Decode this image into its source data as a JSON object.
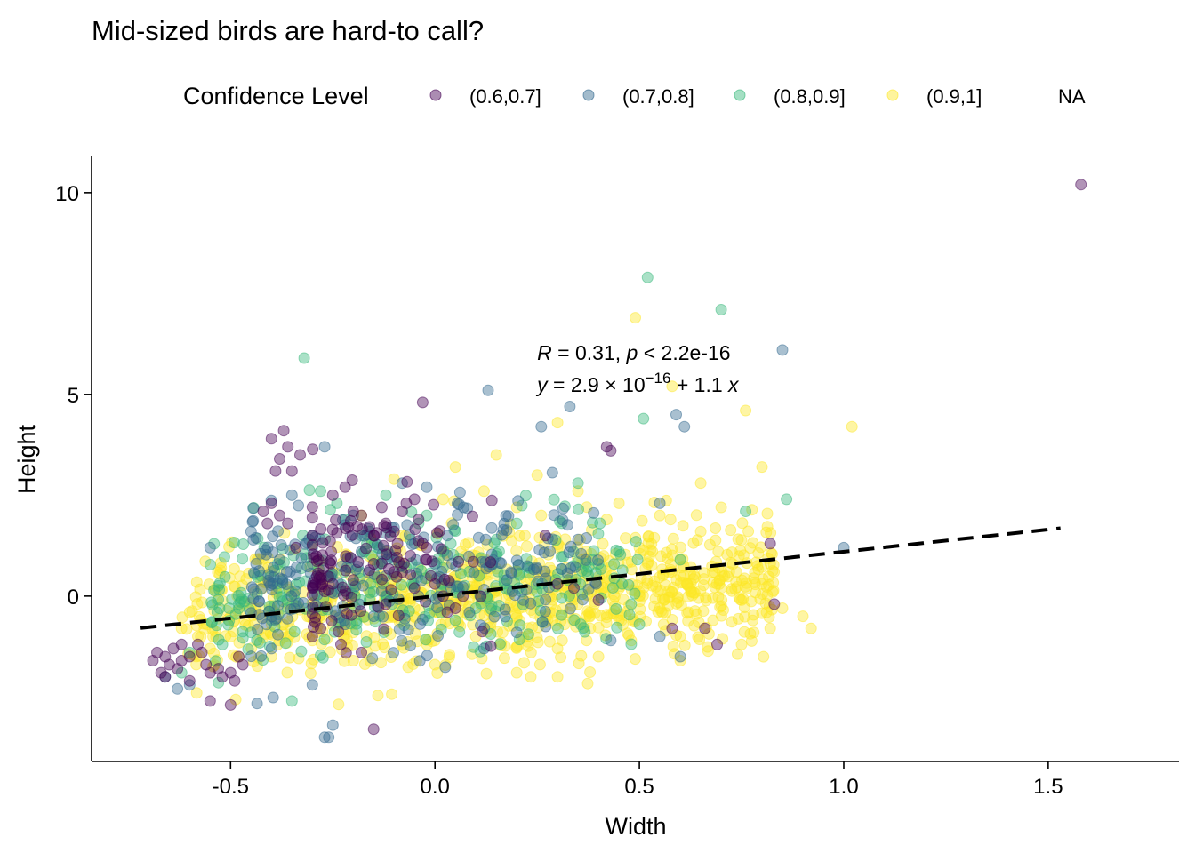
{
  "chart_data": {
    "type": "scatter",
    "title": "Mid-sized birds are hard-to call?",
    "xlabel": "Width",
    "ylabel": "Height",
    "xlim": [
      -0.84,
      1.82
    ],
    "ylim": [
      -4.1,
      10.9
    ],
    "x_ticks": [
      -0.5,
      0.0,
      0.5,
      1.0,
      1.5
    ],
    "x_tick_labels": [
      "-0.5",
      "0.0",
      "0.5",
      "1.0",
      "1.5"
    ],
    "y_ticks": [
      0,
      5,
      10
    ],
    "y_tick_labels": [
      "0",
      "5",
      "10"
    ],
    "legend": {
      "title": "Confidence Level",
      "position": "top",
      "entries": [
        {
          "label": "(0.6,0.7]",
          "color": "#440154"
        },
        {
          "label": "(0.7,0.8]",
          "color": "#31688E"
        },
        {
          "label": "(0.8,0.9]",
          "color": "#35B779"
        },
        {
          "label": "(0.9,1]",
          "color": "#FDE725"
        },
        {
          "label": "NA",
          "color": "#7F7F7F"
        }
      ]
    },
    "regression": {
      "intercept": 0.0,
      "slope": 1.1,
      "x_range": [
        -0.72,
        1.53
      ],
      "style": "dashed"
    },
    "annotations": {
      "line1": {
        "r_label": "R",
        "r_text": " = 0.31, ",
        "p_label": "p",
        "p_text": " < 2.2e-16"
      },
      "line2": {
        "y_label": "y",
        "eq_text": " = 2.9 × 10",
        "exponent": "−16",
        "tail_text": " + 1.1 ",
        "x_label": "x"
      },
      "anchor": [
        0.25,
        5.2
      ]
    },
    "series": [
      {
        "name": "(0.6,0.7]",
        "color": "#440154",
        "points": [
          [
            -0.69,
            -1.6
          ],
          [
            -0.68,
            -1.4
          ],
          [
            -0.67,
            -1.9
          ],
          [
            -0.66,
            -1.5
          ],
          [
            -0.65,
            -1.7
          ],
          [
            -0.64,
            -1.3
          ],
          [
            -0.63,
            -1.8
          ],
          [
            -0.62,
            -1.6
          ],
          [
            -0.66,
            -2.0
          ],
          [
            -0.6,
            -1.5
          ],
          [
            -0.58,
            -1.2
          ],
          [
            -0.56,
            -1.7
          ],
          [
            -0.55,
            -1.9
          ],
          [
            -0.53,
            -1.8
          ],
          [
            -0.52,
            -2.0
          ],
          [
            -0.5,
            -1.9
          ],
          [
            -0.49,
            -2.1
          ],
          [
            -0.47,
            -1.7
          ],
          [
            -0.5,
            -2.7
          ],
          [
            -0.55,
            -2.6
          ],
          [
            -0.6,
            -2.1
          ],
          [
            -0.57,
            -1.4
          ],
          [
            -0.62,
            -1.2
          ],
          [
            -0.48,
            -1.5
          ],
          [
            -0.4,
            3.9
          ],
          [
            -0.37,
            4.1
          ],
          [
            -0.36,
            3.7
          ],
          [
            -0.39,
            3.1
          ],
          [
            -0.38,
            3.4
          ],
          [
            -0.35,
            3.1
          ],
          [
            -0.33,
            3.5
          ],
          [
            -0.42,
            2.1
          ],
          [
            -0.4,
            2.3
          ],
          [
            -0.41,
            1.8
          ],
          [
            -0.38,
            2.0
          ],
          [
            -0.36,
            1.8
          ],
          [
            -0.34,
            1.2
          ],
          [
            -0.3,
            1.5
          ],
          [
            -0.25,
            2.5
          ],
          [
            -0.22,
            2.7
          ],
          [
            -0.2,
            2.1
          ],
          [
            -0.18,
            2.0
          ],
          [
            -0.15,
            1.5
          ],
          [
            -0.13,
            2.2
          ],
          [
            -0.12,
            1.8
          ],
          [
            -0.1,
            1.6
          ],
          [
            -0.08,
            2.1
          ],
          [
            -0.07,
            2.3
          ],
          [
            -0.05,
            2.4
          ],
          [
            -0.04,
            1.9
          ],
          [
            -0.03,
            1.3
          ],
          [
            -0.06,
            1.0
          ],
          [
            -0.02,
            0.9
          ],
          [
            -0.01,
            0.5
          ],
          [
            0.0,
            0.3
          ],
          [
            0.02,
            0.0
          ],
          [
            0.03,
            -0.4
          ],
          [
            -0.05,
            0.2
          ],
          [
            -0.1,
            0.6
          ],
          [
            -0.12,
            -0.2
          ],
          [
            -0.15,
            0.8
          ],
          [
            -0.2,
            0.4
          ],
          [
            -0.25,
            0.3
          ],
          [
            -0.28,
            -0.8
          ],
          [
            -0.23,
            -1.2
          ],
          [
            -0.18,
            -1.4
          ],
          [
            -0.15,
            -3.3
          ],
          [
            -0.03,
            4.8
          ],
          [
            0.27,
            1.5
          ],
          [
            0.3,
            0.3
          ],
          [
            0.34,
            0.2
          ],
          [
            0.4,
            -0.1
          ],
          [
            0.42,
            3.7
          ],
          [
            0.43,
            3.6
          ],
          [
            0.58,
            -0.8
          ],
          [
            0.66,
            -0.8
          ],
          [
            0.69,
            -1.2
          ],
          [
            0.82,
            1.3
          ],
          [
            0.83,
            -0.2
          ],
          [
            1.58,
            10.2
          ],
          [
            -0.02,
            1.2
          ],
          [
            -0.08,
            0.6
          ],
          [
            0.05,
            -0.3
          ],
          [
            -0.3,
            -1.0
          ]
        ]
      },
      {
        "name": "(0.7,0.8]",
        "color": "#31688E",
        "points": [
          [
            -0.27,
            -3.5
          ],
          [
            -0.25,
            -3.2
          ],
          [
            -0.26,
            -3.5
          ],
          [
            -0.3,
            -2.2
          ],
          [
            -0.6,
            -2.2
          ],
          [
            -0.55,
            1.2
          ],
          [
            -0.27,
            3.7
          ],
          [
            0.13,
            5.1
          ],
          [
            0.26,
            4.2
          ],
          [
            0.33,
            4.7
          ],
          [
            0.59,
            4.5
          ],
          [
            0.61,
            4.2
          ],
          [
            0.85,
            6.1
          ],
          [
            0.55,
            2.3
          ],
          [
            1.0,
            1.2
          ],
          [
            -0.2,
            2.0
          ],
          [
            -0.1,
            1.7
          ],
          [
            -0.05,
            1.3
          ],
          [
            0.0,
            0.8
          ],
          [
            0.03,
            1.5
          ],
          [
            -0.15,
            -0.5
          ],
          [
            -0.22,
            -0.7
          ],
          [
            -0.4,
            -1.3
          ],
          [
            -0.63,
            -2.3
          ],
          [
            -0.66,
            -2.0
          ],
          [
            0.55,
            -1.0
          ],
          [
            0.6,
            -1.5
          ],
          [
            -0.3,
            1.2
          ],
          [
            -0.12,
            0.5
          ],
          [
            -0.02,
            2.7
          ],
          [
            0.35,
            1.4
          ],
          [
            0.43,
            -1.1
          ],
          [
            0.12,
            -1.3
          ],
          [
            0.2,
            -0.9
          ],
          [
            -0.04,
            0.0
          ],
          [
            -0.35,
            2.5
          ],
          [
            -0.18,
            1.1
          ],
          [
            -0.08,
            2.8
          ],
          [
            0.07,
            2.2
          ]
        ]
      },
      {
        "name": "(0.8,0.9]",
        "color": "#35B779",
        "points": [
          [
            -0.32,
            5.9
          ],
          [
            0.52,
            7.9
          ],
          [
            0.7,
            7.1
          ],
          [
            0.51,
            4.4
          ],
          [
            0.86,
            2.4
          ],
          [
            0.76,
            2.1
          ],
          [
            -0.35,
            -2.6
          ],
          [
            -0.28,
            2.6
          ],
          [
            -0.24,
            2.3
          ],
          [
            -0.22,
            1.9
          ],
          [
            -0.18,
            1.5
          ],
          [
            -0.14,
            1.2
          ],
          [
            -0.1,
            0.9
          ],
          [
            -0.07,
            0.7
          ],
          [
            -0.04,
            1.8
          ],
          [
            0.02,
            1.1
          ],
          [
            -0.3,
            0.8
          ],
          [
            -0.26,
            0.5
          ],
          [
            -0.36,
            -0.3
          ],
          [
            -0.4,
            -0.6
          ],
          [
            -0.45,
            -0.9
          ],
          [
            -0.52,
            -1.2
          ],
          [
            -0.6,
            -1.4
          ],
          [
            -0.62,
            -1.9
          ],
          [
            0.2,
            1.8
          ],
          [
            0.15,
            1.4
          ],
          [
            0.4,
            0.8
          ],
          [
            0.45,
            1.1
          ],
          [
            -0.12,
            2.5
          ],
          [
            -0.02,
            2.0
          ],
          [
            -0.2,
            0.3
          ],
          [
            0.05,
            -0.6
          ],
          [
            0.1,
            -0.3
          ],
          [
            0.35,
            2.8
          ],
          [
            -0.48,
            -0.3
          ],
          [
            0.6,
            0.9
          ],
          [
            0.5,
            -0.7
          ],
          [
            -0.16,
            1.6
          ],
          [
            -0.06,
            1.4
          ]
        ]
      },
      {
        "name": "(0.9,1]",
        "color": "#FDE725",
        "points": [
          [
            0.49,
            6.9
          ],
          [
            0.58,
            5.2
          ],
          [
            0.76,
            4.6
          ],
          [
            1.02,
            4.2
          ],
          [
            0.3,
            4.3
          ],
          [
            0.8,
            3.2
          ],
          [
            0.65,
            2.8
          ],
          [
            0.7,
            2.2
          ],
          [
            0.9,
            -0.5
          ],
          [
            0.85,
            -0.3
          ],
          [
            0.92,
            -0.8
          ],
          [
            0.75,
            -1.2
          ],
          [
            0.6,
            -1.6
          ],
          [
            0.3,
            -2.0
          ],
          [
            0.2,
            -1.9
          ],
          [
            0.0,
            -1.7
          ],
          [
            -0.2,
            -1.6
          ],
          [
            -0.4,
            -1.5
          ],
          [
            -0.5,
            -1.0
          ],
          [
            -0.6,
            -0.4
          ],
          [
            -0.62,
            -0.8
          ],
          [
            -0.3,
            1.3
          ],
          [
            -0.1,
            2.9
          ],
          [
            0.05,
            3.2
          ],
          [
            0.15,
            3.5
          ],
          [
            0.25,
            3.0
          ],
          [
            0.35,
            2.6
          ],
          [
            0.45,
            2.3
          ],
          [
            0.55,
            2.0
          ],
          [
            0.65,
            1.6
          ],
          [
            0.05,
            0.5
          ],
          [
            0.1,
            1.0
          ],
          [
            0.15,
            0.2
          ],
          [
            0.2,
            -0.5
          ],
          [
            0.25,
            0.6
          ],
          [
            0.3,
            1.2
          ],
          [
            0.35,
            -0.2
          ],
          [
            0.4,
            0.4
          ],
          [
            0.45,
            -0.6
          ],
          [
            0.5,
            0.1
          ],
          [
            0.55,
            -0.3
          ],
          [
            0.6,
            0.5
          ],
          [
            0.7,
            0.2
          ],
          [
            0.75,
            -0.1
          ],
          [
            0.8,
            0.3
          ],
          [
            -0.1,
            -0.5
          ],
          [
            -0.2,
            -0.9
          ],
          [
            -0.3,
            -1.1
          ],
          [
            -0.4,
            -0.7
          ],
          [
            -0.5,
            -0.5
          ],
          [
            -0.55,
            -1.3
          ],
          [
            0.1,
            -1.0
          ],
          [
            0.2,
            2.2
          ],
          [
            0.3,
            -1.3
          ],
          [
            0.4,
            -1.5
          ],
          [
            0.5,
            1.2
          ],
          [
            0.6,
            -1.0
          ],
          [
            0.0,
            -1.1
          ],
          [
            -0.15,
            0.9
          ],
          [
            -0.25,
            0.6
          ],
          [
            -0.35,
            0.1
          ],
          [
            -0.45,
            -0.3
          ],
          [
            0.12,
            2.6
          ],
          [
            0.22,
            1.5
          ],
          [
            0.32,
            0.7
          ],
          [
            0.42,
            1.9
          ],
          [
            0.52,
            0.8
          ],
          [
            0.62,
            -0.4
          ],
          [
            0.72,
            0.6
          ],
          [
            0.82,
            -0.8
          ],
          [
            -0.05,
            -0.3
          ],
          [
            0.08,
            0.2
          ],
          [
            0.18,
            -0.3
          ],
          [
            0.28,
            0.0
          ],
          [
            0.38,
            -0.8
          ],
          [
            0.48,
            -1.1
          ],
          [
            0.58,
            0.1
          ],
          [
            0.68,
            -0.6
          ],
          [
            0.78,
            -0.9
          ],
          [
            -0.08,
            1.5
          ],
          [
            -0.18,
            2.0
          ],
          [
            -0.28,
            -0.4
          ],
          [
            -0.38,
            -1.1
          ],
          [
            -0.48,
            -1.5
          ],
          [
            -0.58,
            -1.0
          ],
          [
            0.02,
            2.4
          ],
          [
            0.26,
            2.0
          ],
          [
            0.36,
            0.9
          ],
          [
            0.46,
            0.3
          ],
          [
            0.56,
            -0.1
          ]
        ]
      }
    ]
  }
}
